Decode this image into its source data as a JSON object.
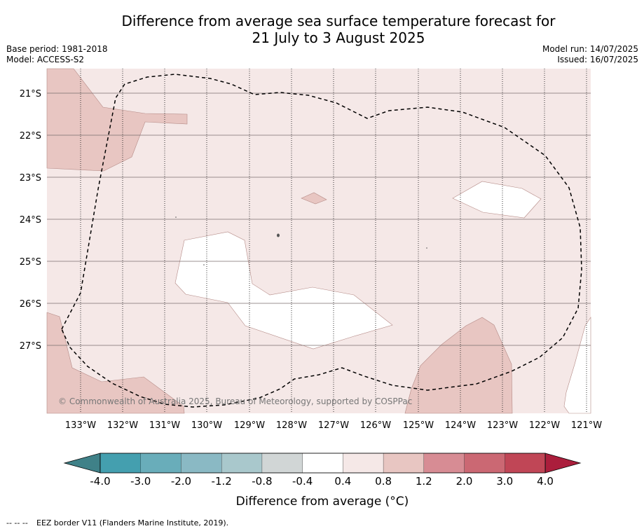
{
  "title_line1": "Difference from average sea surface temperature forecast for",
  "title_line2": "21 July to 3 August 2025",
  "meta_left": [
    "Base period: 1981-2018",
    "Model: ACCESS-S2"
  ],
  "meta_right": [
    "Model run: 14/07/2025",
    "Issued: 16/07/2025"
  ],
  "copyright": "© Commonwealth of Australia 2025, Bureau of Meteorology, supported by COSPPac",
  "lat_labels": [
    "21°S",
    "22°S",
    "23°S",
    "24°S",
    "25°S",
    "26°S",
    "27°S"
  ],
  "lon_labels": [
    "133°W",
    "132°W",
    "131°W",
    "130°W",
    "129°W",
    "128°W",
    "127°W",
    "126°W",
    "125°W",
    "124°W",
    "123°W",
    "122°W",
    "121°W"
  ],
  "colorbar": {
    "ticks": [
      "-4.0",
      "-3.0",
      "-2.0",
      "-1.2",
      "-0.8",
      "-0.4",
      "0.4",
      "0.8",
      "1.2",
      "2.0",
      "3.0",
      "4.0"
    ],
    "colors": [
      "#449faf",
      "#69adba",
      "#8ab9c4",
      "#a9c8cc",
      "#d1d6d6",
      "#ffffff",
      "#f5e8e7",
      "#e8c6c2",
      "#d78c94",
      "#cb6873",
      "#c04656"
    ],
    "low_extend_color": "#3f8188",
    "high_extend_color": "#ab1e3c",
    "label": "Difference from average (°C)"
  },
  "footnote_symbol": "-- -- --",
  "footnote": "EEZ border V11 (Flanders Marine Institute, 2019)."
}
